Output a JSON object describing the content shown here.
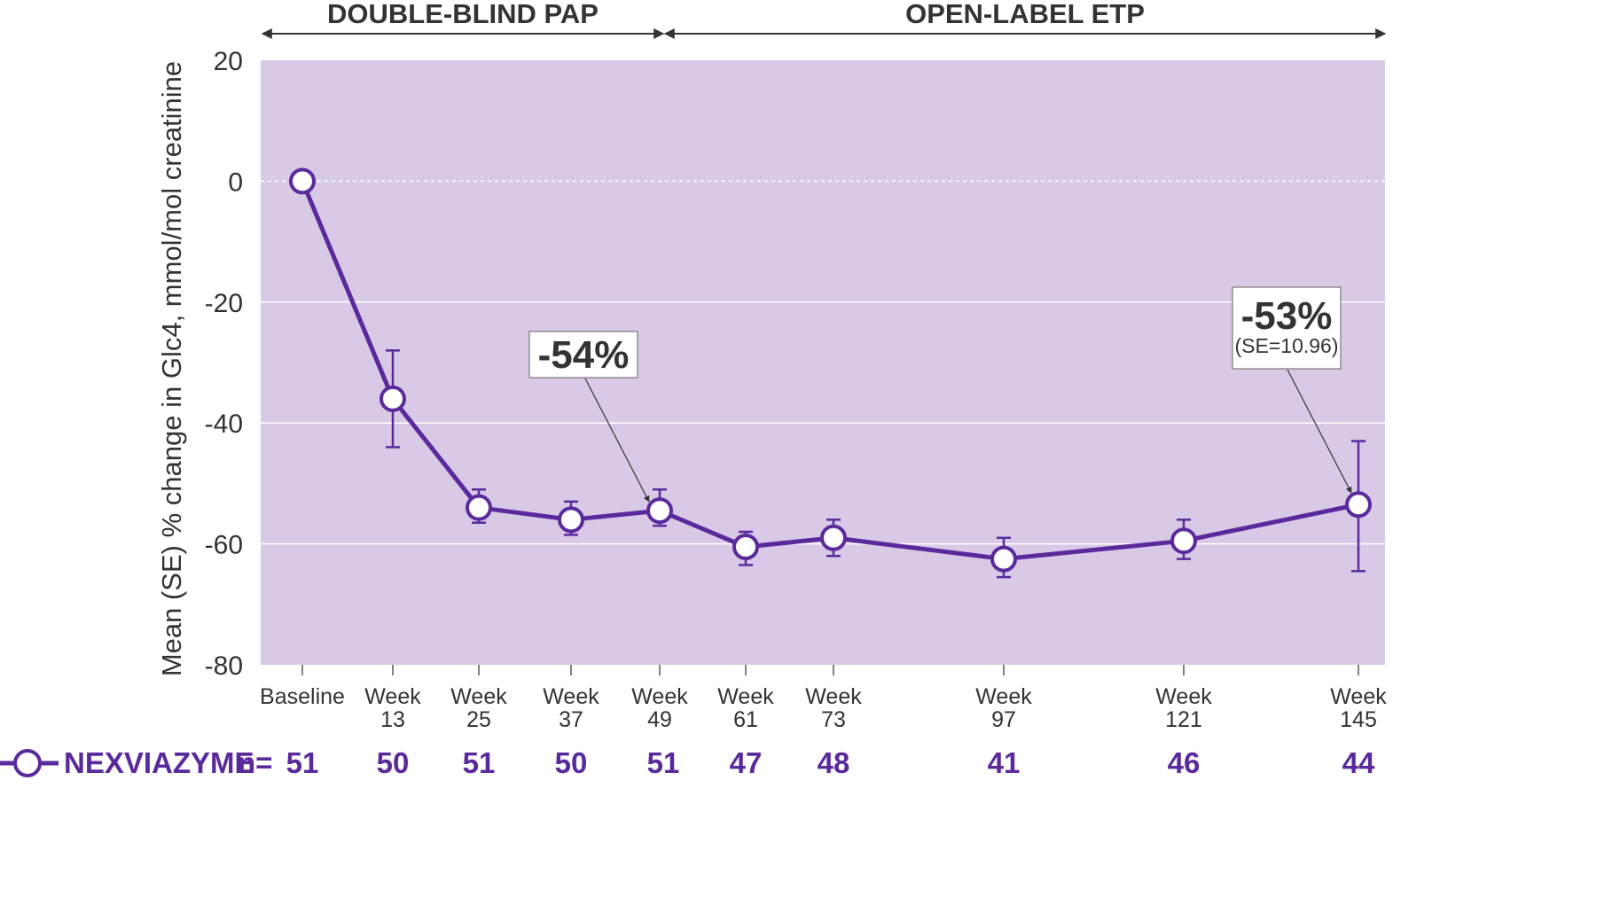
{
  "chart_data": {
    "type": "line",
    "ylabel": "Mean (SE) % change in Glc4, mmol/mol creatinine",
    "ylim": [
      -80,
      20
    ],
    "yticks": [
      20,
      0,
      -20,
      -40,
      -60,
      -80
    ],
    "ytick_labels": [
      "20",
      "0",
      "-20",
      "-40",
      "-60",
      "-80"
    ],
    "x_weeks": [
      0,
      13,
      25,
      37,
      49,
      61,
      73,
      97,
      121,
      145
    ],
    "categories": [
      [
        "Baseline"
      ],
      [
        "Week",
        "13"
      ],
      [
        "Week",
        "25"
      ],
      [
        "Week",
        "37"
      ],
      [
        "Week",
        "49"
      ],
      [
        "Week",
        "61"
      ],
      [
        "Week",
        "73"
      ],
      [
        "Week",
        "97"
      ],
      [
        "Week",
        "121"
      ],
      [
        "Week",
        "145"
      ]
    ],
    "series": [
      {
        "name": "NEXVIAZYME",
        "color": "#5a2a9c",
        "values": [
          0,
          -36,
          -54,
          -56,
          -54.5,
          -60.5,
          -59,
          -62.5,
          -59.5,
          -53.5
        ],
        "se_low": [
          0,
          -44,
          -56.5,
          -58.5,
          -57,
          -63.5,
          -62,
          -65.5,
          -62.5,
          -64.5
        ],
        "se_high": [
          0,
          -28,
          -51,
          -53,
          -51,
          -58,
          -56,
          -59,
          -56,
          -43
        ]
      }
    ],
    "phases": [
      {
        "label": "DOUBLE-BLIND PAP",
        "from_week": 0,
        "to_week": 49
      },
      {
        "label": "OPEN-LABEL ETP",
        "from_week": 49,
        "to_week": 145
      }
    ],
    "annotations": [
      {
        "text": "-54%",
        "subtext": "",
        "point_index": 4
      },
      {
        "text": "-53%",
        "subtext": "(SE=10.96)",
        "point_index": 9
      }
    ],
    "n_row": {
      "legend_label": "NEXVIAZYME",
      "n_label": "n=",
      "values": [
        "51",
        "50",
        "51",
        "50",
        "51",
        "47",
        "48",
        "41",
        "46",
        "44"
      ]
    },
    "grid": true,
    "colors": {
      "plot_bg": "#d8c9e7",
      "line": "#5a2a9c",
      "text": "#333333"
    }
  }
}
